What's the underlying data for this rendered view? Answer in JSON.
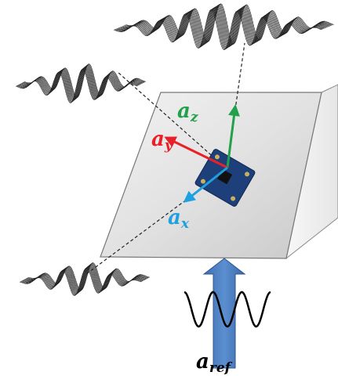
{
  "labels": {
    "a_z": {
      "base": "a",
      "sub": "z"
    },
    "a_y": {
      "base": "a",
      "sub": "y"
    },
    "a_x": {
      "base": "a",
      "sub": "x"
    },
    "a_ref": {
      "base": "a",
      "sub": "ref"
    }
  }
}
